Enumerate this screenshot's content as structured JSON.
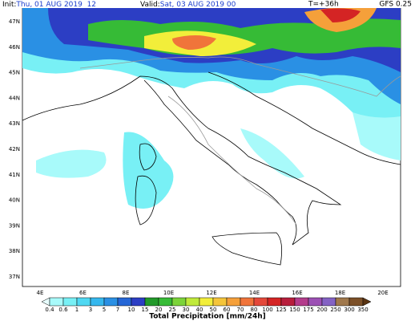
{
  "header": {
    "init_label": "Init:",
    "init": "Thu, 01 AUG 2019  12",
    "valid_label": "Valid:",
    "valid": "Sat, 03 AUG 2019  00",
    "lead": "T=+36h",
    "model": "GFS 0.25"
  },
  "lat_labels": [
    "47N",
    "46N",
    "45N",
    "44N",
    "43N",
    "42N",
    "41N",
    "40N",
    "39N",
    "38N",
    "37N"
  ],
  "lon_labels": [
    "4E",
    "6E",
    "8E",
    "10E",
    "12E",
    "14E",
    "16E",
    "18E",
    "20E"
  ],
  "colorbar": {
    "title": "Total Precipitation [mm/24h]",
    "levels": [
      0.4,
      0.6,
      1,
      3,
      5,
      7,
      10,
      15,
      20,
      25,
      30,
      40,
      50,
      60,
      70,
      80,
      100,
      125,
      150,
      175,
      200,
      250,
      300,
      350
    ],
    "colors": [
      "#e8ffff",
      "#a8fafa",
      "#78f0f5",
      "#4fd8f2",
      "#36b8ee",
      "#2a90e4",
      "#2566d6",
      "#2c3ec4",
      "#229a2a",
      "#36bb36",
      "#7cd43a",
      "#c0ea3a",
      "#f2ee3a",
      "#f5c53a",
      "#f5a03a",
      "#f0743a",
      "#e4483a",
      "#d42424",
      "#b81e3c",
      "#b43c8c",
      "#9c50b4",
      "#8462c4",
      "#a0784c",
      "#7c5028",
      "#5a3412"
    ]
  }
}
